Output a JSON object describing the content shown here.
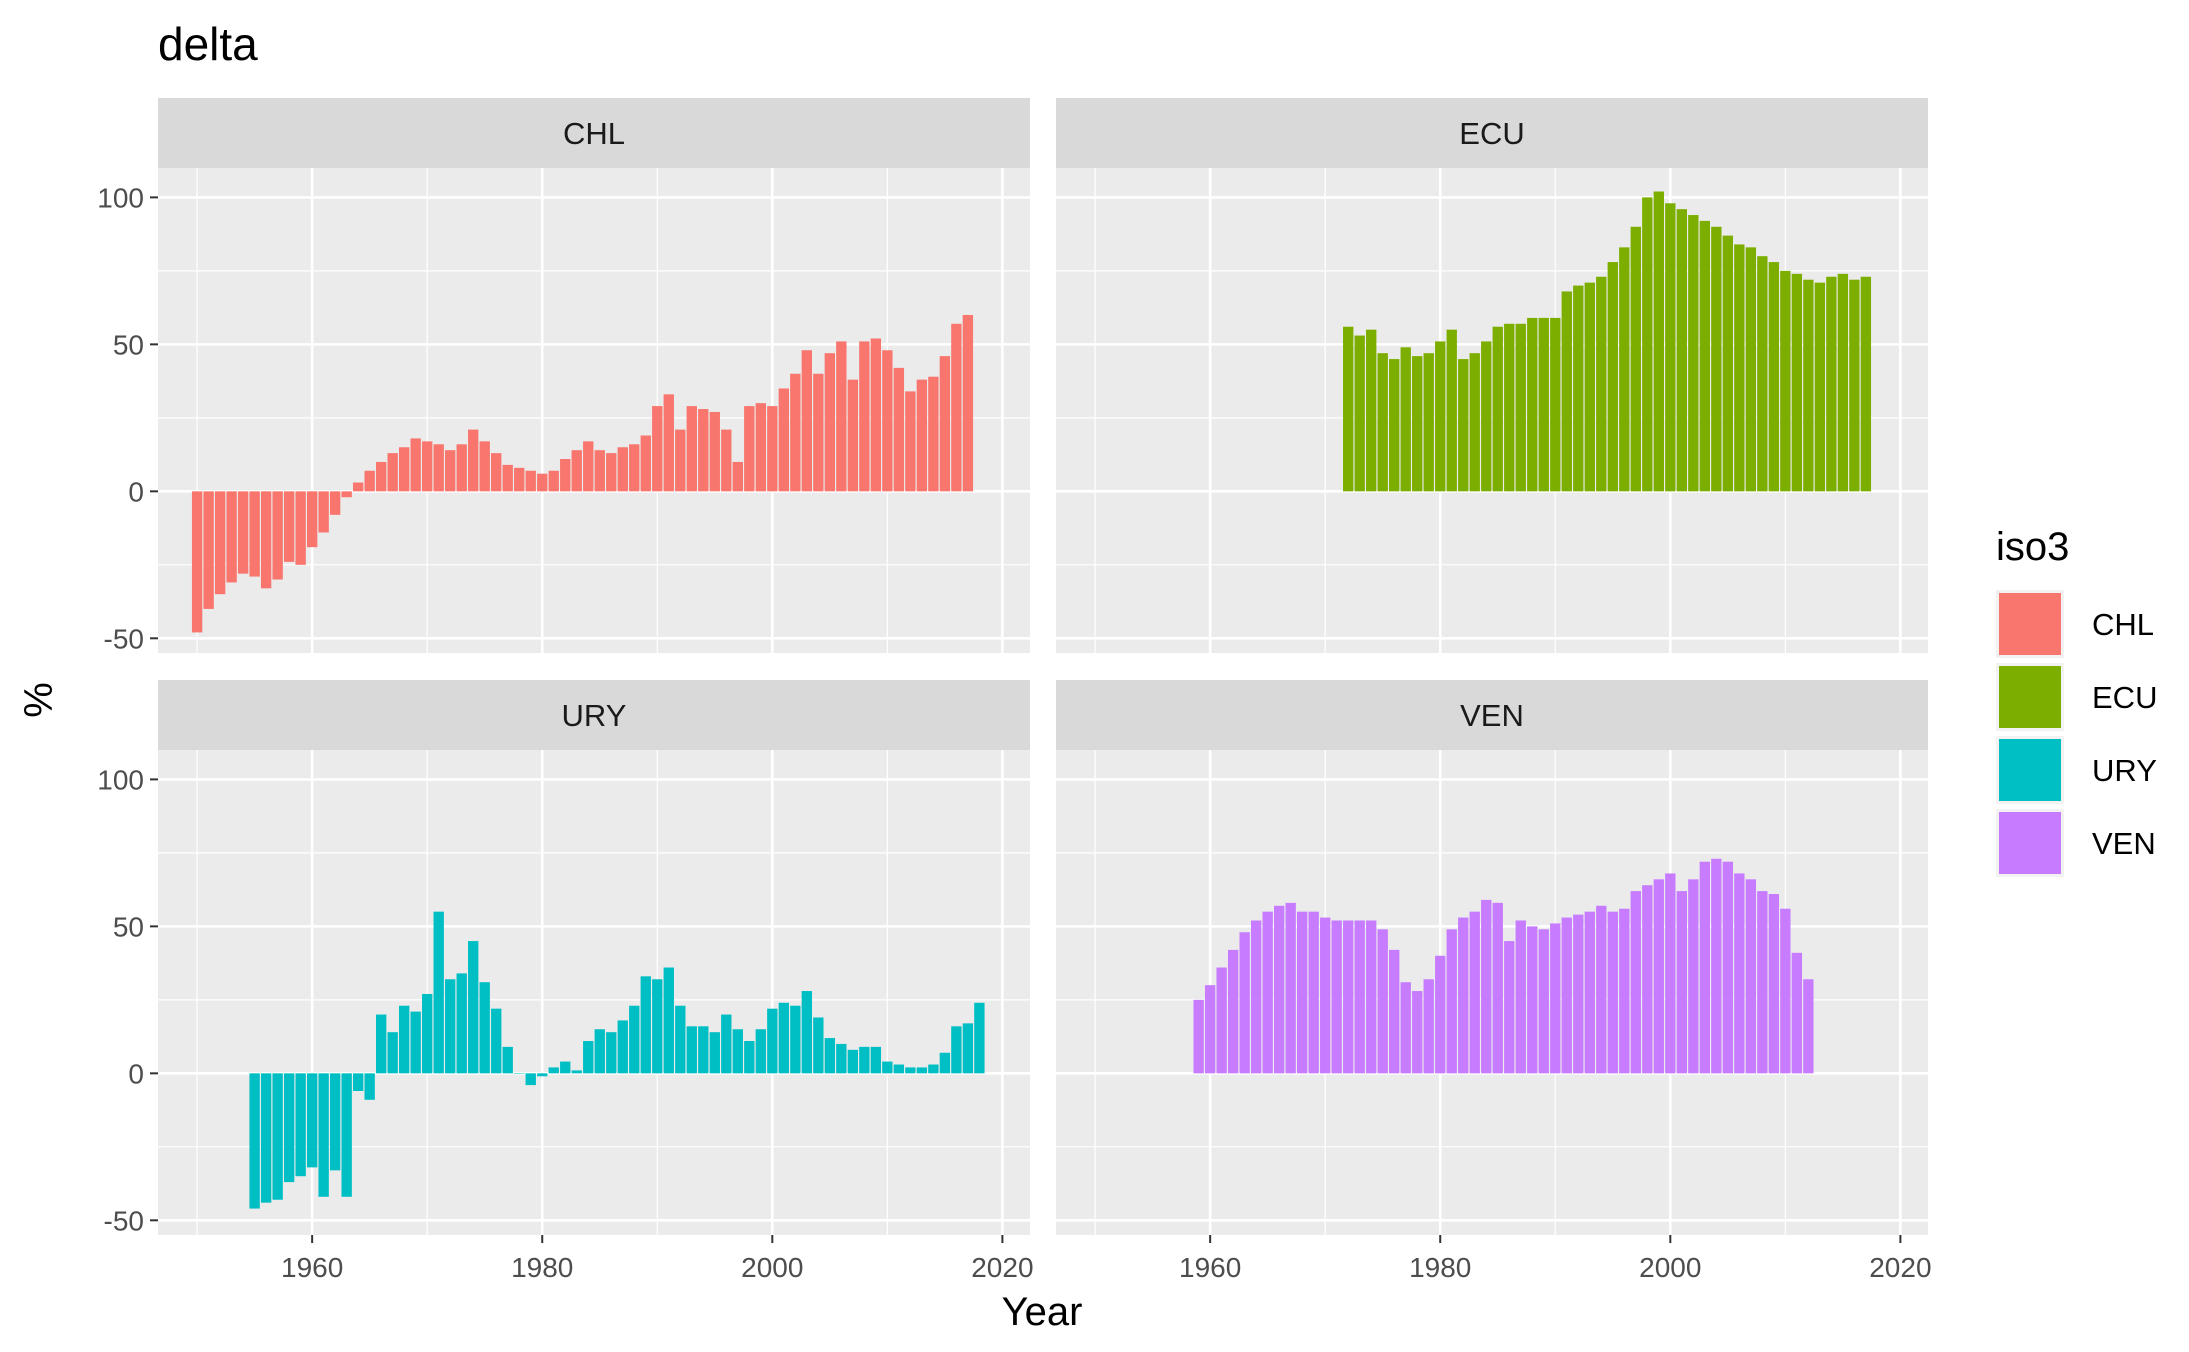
{
  "chart_data": {
    "type": "bar",
    "title": "delta",
    "xlabel": "Year",
    "ylabel": "%",
    "xlim": [
      1946.6,
      2022.4
    ],
    "ylim": [
      -55,
      110
    ],
    "x_ticks": [
      1960,
      1980,
      2000,
      2020
    ],
    "x_tick_labels": [
      "1960",
      "1980",
      "2000",
      "2020"
    ],
    "y_ticks": [
      -50,
      0,
      50,
      100
    ],
    "y_tick_labels": [
      "-50",
      "0",
      "50",
      "100"
    ],
    "grid": true,
    "facets": [
      "CHL",
      "ECU",
      "URY",
      "VEN"
    ],
    "legend": {
      "title": "iso3",
      "position": "right"
    },
    "series": [
      {
        "name": "CHL",
        "color": "#F8766D",
        "start_year": 1950,
        "values": [
          -48,
          -40,
          -35,
          -31,
          -28,
          -29,
          -33,
          -30,
          -24,
          -25,
          -19,
          -14,
          -8,
          -2,
          3,
          7,
          10,
          13,
          15,
          18,
          17,
          16,
          14,
          16,
          21,
          17,
          13,
          9,
          8,
          7,
          6,
          7,
          11,
          14,
          17,
          14,
          13,
          15,
          16,
          19,
          29,
          33,
          21,
          29,
          28,
          27,
          21,
          10,
          29,
          30,
          29,
          35,
          40,
          48,
          40,
          47,
          51,
          38,
          51,
          52,
          48,
          42,
          34,
          38,
          39,
          46,
          57,
          60
        ]
      },
      {
        "name": "ECU",
        "color": "#7CAE00",
        "start_year": 1972,
        "values": [
          56,
          53,
          55,
          47,
          45,
          49,
          46,
          47,
          51,
          55,
          45,
          47,
          51,
          56,
          57,
          57,
          59,
          59,
          59,
          68,
          70,
          71,
          73,
          78,
          83,
          90,
          100,
          102,
          98,
          96,
          94,
          92,
          90,
          87,
          84,
          83,
          80,
          78,
          75,
          74,
          72,
          71,
          73,
          74,
          72,
          73
        ]
      },
      {
        "name": "URY",
        "color": "#00BFC4",
        "start_year": 1955,
        "values": [
          -46,
          -44,
          -43,
          -37,
          -35,
          -32,
          -42,
          -33,
          -42,
          -6,
          -9,
          20,
          14,
          23,
          21,
          27,
          55,
          32,
          34,
          45,
          31,
          22,
          9,
          0,
          -4,
          -1,
          2,
          4,
          1,
          11,
          15,
          14,
          18,
          23,
          33,
          32,
          36,
          23,
          16,
          16,
          14,
          20,
          15,
          11,
          15,
          22,
          24,
          23,
          28,
          19,
          12,
          10,
          8,
          9,
          9,
          4,
          3,
          2,
          2,
          3,
          7,
          16,
          17,
          24
        ]
      },
      {
        "name": "VEN",
        "color": "#C77CFF",
        "start_year": 1959,
        "values": [
          25,
          30,
          36,
          42,
          48,
          52,
          55,
          57,
          58,
          55,
          55,
          53,
          52,
          52,
          52,
          52,
          49,
          42,
          31,
          28,
          32,
          40,
          49,
          53,
          55,
          59,
          58,
          45,
          52,
          50,
          49,
          51,
          53,
          54,
          55,
          57,
          55,
          56,
          62,
          64,
          66,
          68,
          62,
          66,
          72,
          73,
          72,
          68,
          66,
          62,
          61,
          56,
          41,
          32
        ]
      }
    ]
  }
}
